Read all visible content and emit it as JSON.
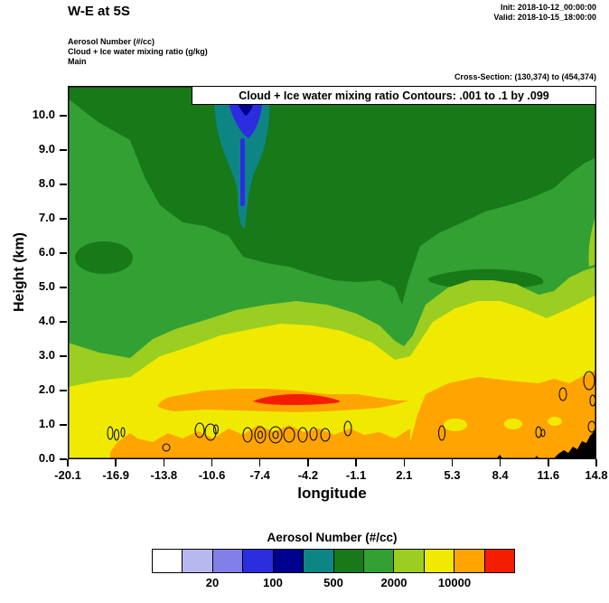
{
  "header": {
    "title": "W-E at 5S",
    "init_line": "Init: 2018-10-12_00:00:00",
    "valid_line": "Valid: 2018-10-15_18:00:00",
    "field_lines": [
      "Aerosol Number  (#/cc)",
      "Cloud + Ice water mixing ratio  (g/kg)",
      "Main"
    ],
    "cross_section": "Cross-Section: (130,374) to (454,374)"
  },
  "chart_data": {
    "type": "heatmap",
    "title": "W-E at 5S",
    "fill_variable": "Aerosol Number (#/cc)",
    "contour_variable": "Cloud + Ice water mixing ratio (g/kg)",
    "contour_box_label": "Cloud + Ice water mixing ratio Contours: .001 to .1 by .099",
    "xlabel": "longitude",
    "ylabel": "Height (km)",
    "x_ticks": [
      -20.1,
      -16.9,
      -13.8,
      -10.6,
      -7.4,
      -4.2,
      -1.1,
      2.1,
      5.3,
      8.4,
      11.6,
      14.8
    ],
    "y_ticks": [
      0.0,
      1.0,
      2.0,
      3.0,
      4.0,
      5.0,
      6.0,
      7.0,
      8.0,
      9.0,
      10.0
    ],
    "x_range": [
      -20.1,
      14.8
    ],
    "y_range_km": [
      0.0,
      10.9
    ],
    "grid": false,
    "legend_position": "bottom",
    "colorbar": {
      "title": "Aerosol Number  (#/cc)",
      "colors": [
        "#ffffff",
        "#b8b8f0",
        "#8080e8",
        "#2d2de0",
        "#00008e",
        "#0e8585",
        "#177917",
        "#33a033",
        "#9bce21",
        "#f0ea00",
        "#ffa400",
        "#f51d00"
      ],
      "boundary_labels": [
        {
          "text": "20",
          "boundary": 2
        },
        {
          "text": "100",
          "boundary": 4
        },
        {
          "text": "500",
          "boundary": 6
        },
        {
          "text": "2000",
          "boundary": 8
        },
        {
          "text": "10000",
          "boundary": 10
        }
      ]
    },
    "features": [
      {
        "region": "upper troposphere, 5.5-10.9 km, most longitudes",
        "aerosol_number_cc": "500-2000",
        "color": "dark/medium green"
      },
      {
        "region": "aerosol minimum near lon -9.5 to -7.5 above 8 km, tongue down to ~6.5 km",
        "aerosol_number_cc": "50-200",
        "color": "blue/navy core with teal rim (200-500)"
      },
      {
        "region": "mid levels ~3.5-5.5 km (boundary rises eastward from ~3.4 km at lon -20 to ~5.6 km at lon 14.8, local dip near lon 2)",
        "aerosol_number_cc": "2000-5000",
        "color": "yellow-green"
      },
      {
        "region": "lower troposphere ~0.5-4 km",
        "aerosol_number_cc": "5000-10000",
        "color": "yellow"
      },
      {
        "region": "band 1.4-2.1 km from lon -14 to 2, plus lon 2.5-14.8 below ~2.5 km and surface layer",
        "aerosol_number_cc": "10000-20000",
        "color": "orange"
      },
      {
        "region": "aerosol maximum lon -8 to -2 near 1.7 km",
        "aerosol_number_cc": ">20000",
        "color": "red"
      },
      {
        "region": "terrain silhouette lon ~12-14.8 below ~0.9 km",
        "color": "black"
      },
      {
        "region": "cloud + ice mixing ratio contour loops (.001-.1 g/kg) near 0.3-1 km at lon ~ -17, -13.6, -11, -10.5, -8 to -3, -1.6, 4.6, 11, and near right edge at 1-2.5 km",
        "color": "black line contours"
      }
    ]
  }
}
